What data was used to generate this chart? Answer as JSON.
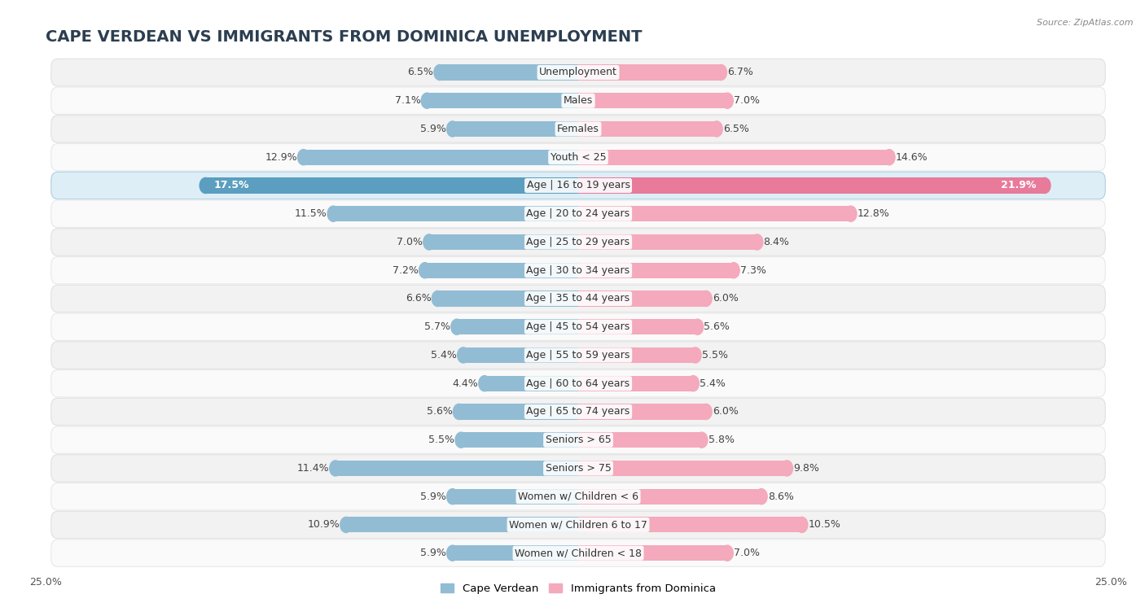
{
  "title": "CAPE VERDEAN VS IMMIGRANTS FROM DOMINICA UNEMPLOYMENT",
  "source": "Source: ZipAtlas.com",
  "categories": [
    "Unemployment",
    "Males",
    "Females",
    "Youth < 25",
    "Age | 16 to 19 years",
    "Age | 20 to 24 years",
    "Age | 25 to 29 years",
    "Age | 30 to 34 years",
    "Age | 35 to 44 years",
    "Age | 45 to 54 years",
    "Age | 55 to 59 years",
    "Age | 60 to 64 years",
    "Age | 65 to 74 years",
    "Seniors > 65",
    "Seniors > 75",
    "Women w/ Children < 6",
    "Women w/ Children 6 to 17",
    "Women w/ Children < 18"
  ],
  "cape_verdean": [
    6.5,
    7.1,
    5.9,
    12.9,
    17.5,
    11.5,
    7.0,
    7.2,
    6.6,
    5.7,
    5.4,
    4.4,
    5.6,
    5.5,
    11.4,
    5.9,
    10.9,
    5.9
  ],
  "dominica": [
    6.7,
    7.0,
    6.5,
    14.6,
    21.9,
    12.8,
    8.4,
    7.3,
    6.0,
    5.6,
    5.5,
    5.4,
    6.0,
    5.8,
    9.8,
    8.6,
    10.5,
    7.0
  ],
  "cv_color": "#92bcd4",
  "dom_color": "#f4a9bc",
  "cv_highlight_color": "#5b9ec0",
  "dom_highlight_color": "#e87a9a",
  "row_bg_even": "#f2f2f2",
  "row_bg_odd": "#fafafa",
  "row_bg_highlight": "#ddeef7",
  "max_val": 25.0,
  "legend_cv": "Cape Verdean",
  "legend_dom": "Immigrants from Dominica",
  "title_fontsize": 14,
  "label_fontsize": 9,
  "value_fontsize": 9,
  "highlight_index": 4
}
